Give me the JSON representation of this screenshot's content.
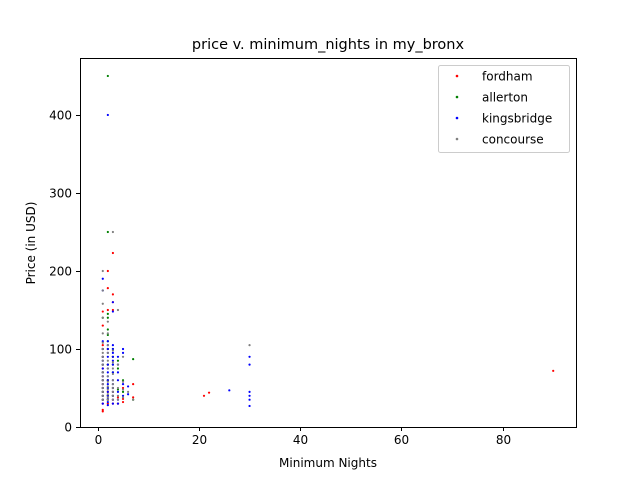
{
  "chart_data": {
    "type": "scatter",
    "title": "price v. minimum_nights in my_bronx",
    "xlabel": "Minimum Nights",
    "ylabel": "Price (in USD)",
    "xlim": [
      -3.5,
      94.5
    ],
    "ylim": [
      0,
      473
    ],
    "xticks": [
      0,
      20,
      40,
      60,
      80
    ],
    "yticks": [
      0,
      100,
      200,
      300,
      400
    ],
    "grid": false,
    "legend_position": "top-right",
    "series": [
      {
        "name": "fordham",
        "color": "#ff0000",
        "points": [
          [
            1,
            20
          ],
          [
            1,
            22
          ],
          [
            1,
            30
          ],
          [
            1,
            35
          ],
          [
            1,
            40
          ],
          [
            1,
            45
          ],
          [
            1,
            50
          ],
          [
            1,
            55
          ],
          [
            1,
            60
          ],
          [
            1,
            65
          ],
          [
            1,
            70
          ],
          [
            1,
            75
          ],
          [
            1,
            80
          ],
          [
            1,
            90
          ],
          [
            1,
            100
          ],
          [
            1,
            105
          ],
          [
            1,
            130
          ],
          [
            1,
            148
          ],
          [
            2,
            30
          ],
          [
            2,
            35
          ],
          [
            2,
            40
          ],
          [
            2,
            45
          ],
          [
            2,
            60
          ],
          [
            2,
            80
          ],
          [
            2,
            100
          ],
          [
            2,
            150
          ],
          [
            2,
            178
          ],
          [
            2,
            200
          ],
          [
            3,
            30
          ],
          [
            3,
            35
          ],
          [
            3,
            40
          ],
          [
            3,
            45
          ],
          [
            3,
            50
          ],
          [
            3,
            90
          ],
          [
            3,
            150
          ],
          [
            3,
            160
          ],
          [
            3,
            170
          ],
          [
            3,
            223
          ],
          [
            4,
            30
          ],
          [
            4,
            38
          ],
          [
            5,
            32
          ],
          [
            5,
            36
          ],
          [
            5,
            50
          ],
          [
            7,
            38
          ],
          [
            7,
            55
          ],
          [
            21,
            40
          ],
          [
            22,
            44
          ],
          [
            90,
            72
          ]
        ]
      },
      {
        "name": "allerton",
        "color": "#008000",
        "points": [
          [
            1,
            35
          ],
          [
            1,
            40
          ],
          [
            1,
            45
          ],
          [
            1,
            50
          ],
          [
            1,
            60
          ],
          [
            1,
            70
          ],
          [
            1,
            80
          ],
          [
            1,
            90
          ],
          [
            1,
            100
          ],
          [
            1,
            140
          ],
          [
            2,
            35
          ],
          [
            2,
            40
          ],
          [
            2,
            50
          ],
          [
            2,
            60
          ],
          [
            2,
            80
          ],
          [
            2,
            100
          ],
          [
            2,
            110
          ],
          [
            2,
            118
          ],
          [
            2,
            125
          ],
          [
            2,
            140
          ],
          [
            2,
            145
          ],
          [
            2,
            250
          ],
          [
            2,
            450
          ],
          [
            3,
            40
          ],
          [
            3,
            50
          ],
          [
            3,
            70
          ],
          [
            3,
            80
          ],
          [
            3,
            90
          ],
          [
            3,
            100
          ],
          [
            4,
            48
          ],
          [
            4,
            75
          ],
          [
            4,
            85
          ],
          [
            5,
            45
          ],
          [
            5,
            60
          ],
          [
            7,
            35
          ],
          [
            7,
            87
          ]
        ]
      },
      {
        "name": "kingsbridge",
        "color": "#0000ff",
        "points": [
          [
            1,
            30
          ],
          [
            1,
            35
          ],
          [
            1,
            40
          ],
          [
            1,
            45
          ],
          [
            1,
            50
          ],
          [
            1,
            55
          ],
          [
            1,
            60
          ],
          [
            1,
            65
          ],
          [
            1,
            70
          ],
          [
            1,
            75
          ],
          [
            1,
            80
          ],
          [
            1,
            85
          ],
          [
            1,
            90
          ],
          [
            1,
            100
          ],
          [
            1,
            110
          ],
          [
            1,
            175
          ],
          [
            1,
            190
          ],
          [
            2,
            28
          ],
          [
            2,
            32
          ],
          [
            2,
            36
          ],
          [
            2,
            40
          ],
          [
            2,
            45
          ],
          [
            2,
            50
          ],
          [
            2,
            55
          ],
          [
            2,
            60
          ],
          [
            2,
            65
          ],
          [
            2,
            70
          ],
          [
            2,
            75
          ],
          [
            2,
            80
          ],
          [
            2,
            90
          ],
          [
            2,
            95
          ],
          [
            2,
            100
          ],
          [
            2,
            105
          ],
          [
            2,
            110
          ],
          [
            2,
            400
          ],
          [
            3,
            30
          ],
          [
            3,
            35
          ],
          [
            3,
            40
          ],
          [
            3,
            45
          ],
          [
            3,
            50
          ],
          [
            3,
            55
          ],
          [
            3,
            60
          ],
          [
            3,
            70
          ],
          [
            3,
            80
          ],
          [
            3,
            85
          ],
          [
            3,
            90
          ],
          [
            3,
            95
          ],
          [
            3,
            100
          ],
          [
            3,
            105
          ],
          [
            3,
            148
          ],
          [
            3,
            160
          ],
          [
            4,
            30
          ],
          [
            4,
            35
          ],
          [
            4,
            45
          ],
          [
            4,
            60
          ],
          [
            4,
            70
          ],
          [
            4,
            80
          ],
          [
            4,
            90
          ],
          [
            5,
            40
          ],
          [
            5,
            55
          ],
          [
            5,
            95
          ],
          [
            5,
            100
          ],
          [
            6,
            42
          ],
          [
            6,
            52
          ],
          [
            26,
            47
          ],
          [
            30,
            27
          ],
          [
            30,
            35
          ],
          [
            30,
            40
          ],
          [
            30,
            45
          ],
          [
            30,
            80
          ],
          [
            30,
            90
          ]
        ]
      },
      {
        "name": "concourse",
        "color": "#808080",
        "points": [
          [
            1,
            35
          ],
          [
            1,
            40
          ],
          [
            1,
            45
          ],
          [
            1,
            50
          ],
          [
            1,
            55
          ],
          [
            1,
            60
          ],
          [
            1,
            65
          ],
          [
            1,
            70
          ],
          [
            1,
            80
          ],
          [
            1,
            85
          ],
          [
            1,
            90
          ],
          [
            1,
            95
          ],
          [
            1,
            100
          ],
          [
            1,
            108
          ],
          [
            1,
            120
          ],
          [
            1,
            140
          ],
          [
            1,
            158
          ],
          [
            1,
            175
          ],
          [
            1,
            200
          ],
          [
            2,
            35
          ],
          [
            2,
            38
          ],
          [
            2,
            42
          ],
          [
            2,
            48
          ],
          [
            2,
            52
          ],
          [
            2,
            58
          ],
          [
            2,
            65
          ],
          [
            2,
            75
          ],
          [
            2,
            85
          ],
          [
            2,
            95
          ],
          [
            2,
            105
          ],
          [
            2,
            120
          ],
          [
            2,
            135
          ],
          [
            3,
            35
          ],
          [
            3,
            40
          ],
          [
            3,
            45
          ],
          [
            3,
            50
          ],
          [
            3,
            55
          ],
          [
            3,
            60
          ],
          [
            3,
            68
          ],
          [
            3,
            75
          ],
          [
            3,
            83
          ],
          [
            3,
            98
          ],
          [
            3,
            250
          ],
          [
            4,
            35
          ],
          [
            4,
            40
          ],
          [
            4,
            50
          ],
          [
            4,
            80
          ],
          [
            4,
            150
          ],
          [
            5,
            38
          ],
          [
            5,
            48
          ],
          [
            5,
            58
          ],
          [
            5,
            90
          ],
          [
            6,
            45
          ],
          [
            7,
            35
          ],
          [
            30,
            105
          ]
        ]
      }
    ]
  }
}
